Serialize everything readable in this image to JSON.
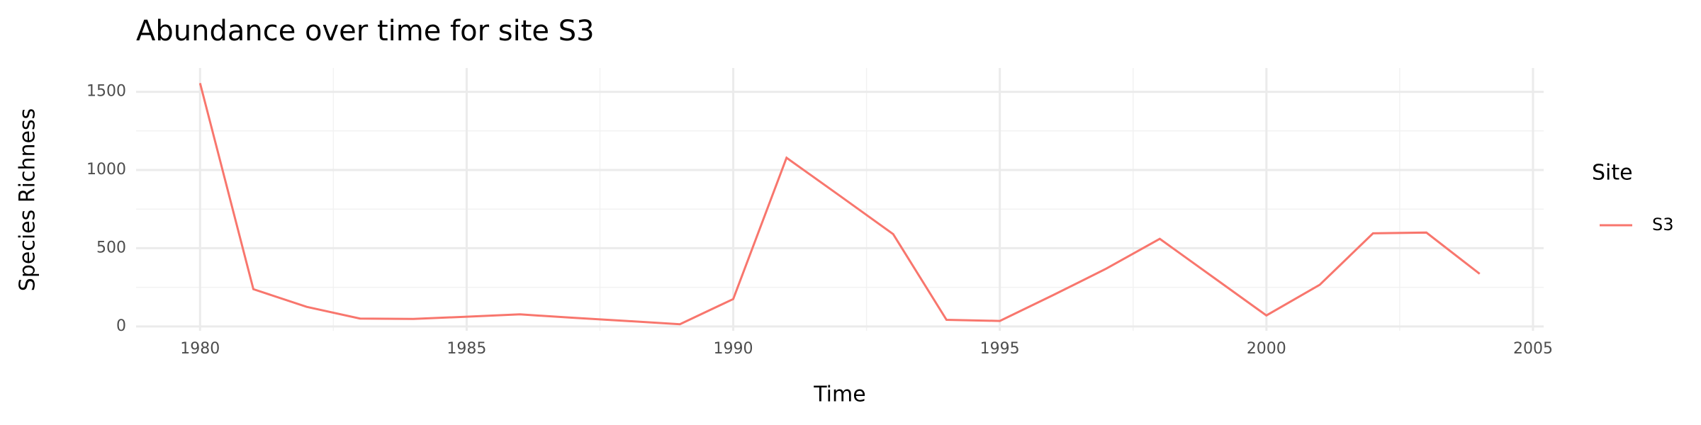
{
  "chart_data": {
    "type": "line",
    "title": "Abundance over time for site S3",
    "x_label": "Time",
    "y_label": "Species Richness",
    "legend_title": "Site",
    "x": [
      1980,
      1981,
      1982,
      1983,
      1984,
      1985,
      1986,
      1987,
      1988,
      1989,
      1990,
      1991,
      1992,
      1993,
      1994,
      1995,
      1996,
      1997,
      1998,
      1999,
      2000,
      2001,
      2002,
      2003,
      2004
    ],
    "series": [
      {
        "name": "S3",
        "color": "#f8766d",
        "values": [
          1555,
          238,
          125,
          50,
          48,
          62,
          77,
          55,
          35,
          14,
          175,
          1078,
          835,
          590,
          42,
          35,
          200,
          370,
          560,
          315,
          70,
          266,
          595,
          600,
          336
        ]
      }
    ],
    "xlim": [
      1978.8,
      2005.2
    ],
    "xticks": [
      1980,
      1985,
      1990,
      1995,
      2000,
      2005
    ],
    "ylim": [
      -28,
      1652
    ],
    "yticks": [
      0,
      500,
      1000,
      1500
    ],
    "grid": true,
    "legend_position": "right"
  }
}
